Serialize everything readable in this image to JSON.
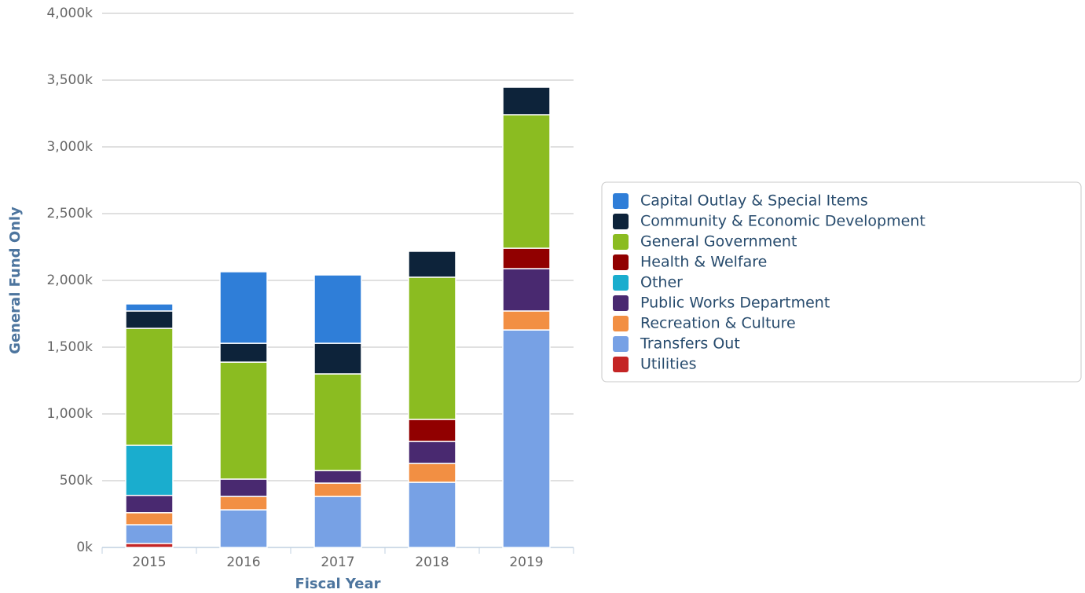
{
  "chart_data": {
    "type": "stacked_bar",
    "x_label": "Fiscal Year",
    "y_label": "General Fund Only",
    "categories": [
      "2015",
      "2016",
      "2017",
      "2018",
      "2019"
    ],
    "series": [
      {
        "name": "Utilities",
        "color": "#c42525",
        "values": [
          30,
          0,
          0,
          0,
          0
        ]
      },
      {
        "name": "Transfers Out",
        "color": "#77a1e5",
        "values": [
          140,
          282,
          382,
          488,
          1629
        ]
      },
      {
        "name": "Recreation & Culture",
        "color": "#f28f43",
        "values": [
          90,
          100,
          100,
          141,
          142
        ]
      },
      {
        "name": "Public Works Department",
        "color": "#492970",
        "values": [
          130,
          130,
          94,
          165,
          317
        ]
      },
      {
        "name": "Other",
        "color": "#1aadce",
        "values": [
          375,
          0,
          0,
          0,
          0
        ]
      },
      {
        "name": "Health & Welfare",
        "color": "#910000",
        "values": [
          0,
          0,
          0,
          165,
          153
        ]
      },
      {
        "name": "General Government",
        "color": "#8bbc21",
        "values": [
          876,
          876,
          724,
          1065,
          1000
        ]
      },
      {
        "name": "Community & Economic Development",
        "color": "#0d233a",
        "values": [
          130,
          141,
          229,
          194,
          206
        ]
      },
      {
        "name": "Capital Outlay & Special Items",
        "color": "#2f7ed8",
        "values": [
          53,
          536,
          512,
          0,
          0
        ]
      }
    ],
    "ylim": [
      0,
      4000
    ],
    "yticks": [
      {
        "value": 0,
        "label": "0k"
      },
      {
        "value": 500,
        "label": "500k"
      },
      {
        "value": 1000,
        "label": "1,000k"
      },
      {
        "value": 1500,
        "label": "1,500k"
      },
      {
        "value": 2000,
        "label": "2,000k"
      },
      {
        "value": 2500,
        "label": "2,500k"
      },
      {
        "value": 3000,
        "label": "3,000k"
      },
      {
        "value": 3500,
        "label": "3,500k"
      },
      {
        "value": 4000,
        "label": "4,000k"
      }
    ],
    "grid": true,
    "legend": "right"
  }
}
